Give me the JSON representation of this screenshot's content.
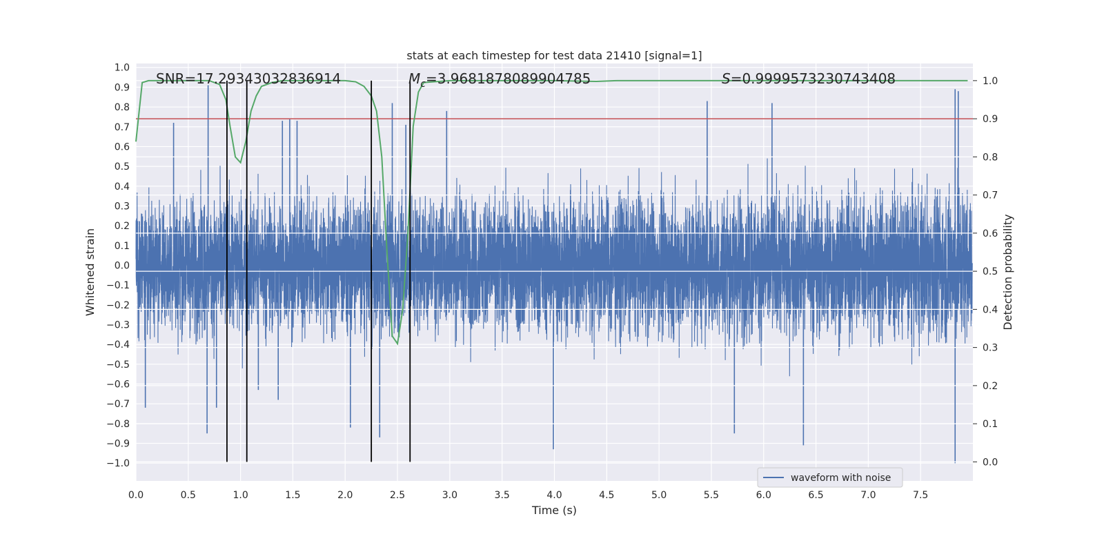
{
  "chart_data": {
    "type": "line",
    "title": "stats at each timestep for test data 21410 [signal=1]",
    "xlabel": "Time (s)",
    "ylabel_left": "Whitened strain",
    "ylabel_right": "Detection probability",
    "xlim": [
      0,
      8
    ],
    "ylim_left": [
      -1.09,
      1.02
    ],
    "ylim_right": [
      -0.05,
      1.045
    ],
    "x_ticks": [
      0.0,
      0.5,
      1.0,
      1.5,
      2.0,
      2.5,
      3.0,
      3.5,
      4.0,
      4.5,
      5.0,
      5.5,
      6.0,
      6.5,
      7.0,
      7.5
    ],
    "x_tick_labels": [
      "0.0",
      "0.5",
      "1.0",
      "1.5",
      "2.0",
      "2.5",
      "3.0",
      "3.5",
      "4.0",
      "4.5",
      "5.0",
      "5.5",
      "6.0",
      "6.5",
      "7.0",
      "7.5"
    ],
    "y_left_ticks": [
      -1.0,
      -0.9,
      -0.8,
      -0.7,
      -0.6,
      -0.5,
      -0.4,
      -0.3,
      -0.2,
      -0.1,
      0.0,
      0.1,
      0.2,
      0.3,
      0.4,
      0.5,
      0.6,
      0.7,
      0.8,
      0.9,
      1.0
    ],
    "y_left_tick_labels": [
      "−1.0",
      "−0.9",
      "−0.8",
      "−0.7",
      "−0.6",
      "−0.5",
      "−0.4",
      "−0.3",
      "−0.2",
      "−0.1",
      "0.0",
      "0.1",
      "0.2",
      "0.3",
      "0.4",
      "0.5",
      "0.6",
      "0.7",
      "0.8",
      "0.9",
      "1.0"
    ],
    "y_right_ticks": [
      0.0,
      0.1,
      0.2,
      0.3,
      0.4,
      0.5,
      0.6,
      0.7,
      0.8,
      0.9,
      1.0
    ],
    "y_right_tick_labels": [
      "0.0",
      "0.1",
      "0.2",
      "0.3",
      "0.4",
      "0.5",
      "0.6",
      "0.7",
      "0.8",
      "0.9",
      "1.0"
    ],
    "grid": true,
    "legend": {
      "placement": "lower-right",
      "entries": [
        "waveform with noise"
      ]
    },
    "annotations": {
      "snr": "SNR=17.29343032836914",
      "mc_symbol": "M",
      "mc_sub": "c",
      "mc_value": "=3.9681878089904785",
      "s_symbol": "S",
      "s_value": "=0.9999573230743408"
    },
    "waveform": {
      "name": "waveform with noise",
      "color": "#4c72b0",
      "samples": 8000,
      "envelope": [
        [
          0.0,
          0.25
        ],
        [
          0.5,
          0.27
        ],
        [
          1.0,
          0.27
        ],
        [
          1.5,
          0.26
        ],
        [
          2.0,
          0.27
        ],
        [
          2.5,
          0.28
        ],
        [
          3.0,
          0.26
        ],
        [
          3.5,
          0.27
        ],
        [
          4.0,
          0.28
        ],
        [
          4.5,
          0.28
        ],
        [
          5.0,
          0.28
        ],
        [
          5.5,
          0.28
        ],
        [
          6.0,
          0.29
        ],
        [
          6.5,
          0.29
        ],
        [
          7.0,
          0.28
        ],
        [
          7.5,
          0.3
        ],
        [
          8.0,
          0.3
        ]
      ],
      "peaks": [
        {
          "x": 0.69,
          "y": 0.91
        },
        {
          "x": 0.36,
          "y": 0.72
        },
        {
          "x": 1.4,
          "y": 0.73
        },
        {
          "x": 1.47,
          "y": 0.74
        },
        {
          "x": 1.54,
          "y": 0.73
        },
        {
          "x": 2.45,
          "y": 0.82
        },
        {
          "x": 2.58,
          "y": 0.71
        },
        {
          "x": 2.97,
          "y": 0.78
        },
        {
          "x": 5.46,
          "y": 0.83
        },
        {
          "x": 6.08,
          "y": 0.82
        },
        {
          "x": 7.83,
          "y": 0.89
        },
        {
          "x": 7.86,
          "y": 0.88
        },
        {
          "x": 0.68,
          "y": -0.85
        },
        {
          "x": 2.05,
          "y": -0.82
        },
        {
          "x": 2.33,
          "y": -0.87
        },
        {
          "x": 3.99,
          "y": -0.93
        },
        {
          "x": 6.38,
          "y": -0.91
        },
        {
          "x": 5.72,
          "y": -0.85
        },
        {
          "x": 7.83,
          "y": -1.0
        },
        {
          "x": 0.09,
          "y": -0.72
        },
        {
          "x": 0.77,
          "y": -0.72
        },
        {
          "x": 1.17,
          "y": -0.63
        },
        {
          "x": 1.36,
          "y": -0.68
        }
      ]
    },
    "detection_probability": {
      "color": "#55a868",
      "x": [
        0.0,
        0.06,
        0.12,
        0.3,
        0.5,
        0.7,
        0.8,
        0.86,
        0.9,
        0.95,
        1.0,
        1.05,
        1.1,
        1.15,
        1.2,
        1.3,
        1.4,
        1.5,
        1.7,
        1.9,
        2.0,
        2.1,
        2.18,
        2.25,
        2.3,
        2.35,
        2.4,
        2.45,
        2.5,
        2.55,
        2.6,
        2.65,
        2.7,
        2.75,
        3.0,
        4.0,
        4.4,
        4.6,
        5.0,
        6.0,
        7.0,
        7.95
      ],
      "y": [
        0.84,
        0.995,
        1.0,
        1.0,
        1.0,
        1.0,
        0.99,
        0.95,
        0.88,
        0.8,
        0.785,
        0.84,
        0.92,
        0.96,
        0.985,
        0.995,
        1.0,
        1.0,
        1.0,
        1.0,
        1.0,
        0.997,
        0.985,
        0.96,
        0.92,
        0.8,
        0.55,
        0.33,
        0.31,
        0.4,
        0.6,
        0.88,
        0.97,
        0.995,
        1.0,
        1.0,
        0.998,
        1.0,
        1.0,
        1.0,
        1.0,
        1.0
      ]
    },
    "threshold_line": {
      "value": 0.9,
      "color": "#c44e52"
    },
    "vertical_lines": [
      0.87,
      1.06,
      2.25,
      2.62
    ]
  }
}
